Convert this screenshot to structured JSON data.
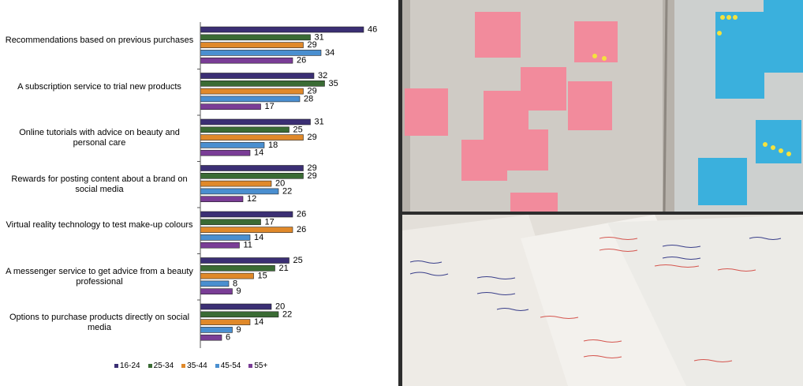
{
  "chart_data": {
    "type": "bar",
    "orientation": "horizontal",
    "title": "",
    "xlabel": "",
    "ylabel": "",
    "xlim": [
      0,
      50
    ],
    "grid": false,
    "legend_position": "bottom",
    "categories": [
      "Recommendations based on previous purchases",
      "A subscription service to trial new products",
      "Online tutorials with advice on beauty and personal care",
      "Rewards for posting content about a brand on social media",
      "Virtual reality technology to test make-up colours",
      "A messenger service to get advice from a beauty professional",
      "Options to purchase products directly on social media"
    ],
    "series": [
      {
        "name": "16-24",
        "color": "#3b2f74",
        "values": [
          46,
          32,
          31,
          29,
          26,
          25,
          20
        ]
      },
      {
        "name": "25-34",
        "color": "#3a6b34",
        "values": [
          31,
          35,
          25,
          29,
          17,
          21,
          22
        ]
      },
      {
        "name": "35-44",
        "color": "#e0892a",
        "values": [
          29,
          29,
          29,
          20,
          26,
          15,
          14
        ]
      },
      {
        "name": "45-54",
        "color": "#4a8fd0",
        "values": [
          34,
          28,
          18,
          22,
          14,
          8,
          9
        ]
      },
      {
        "name": "55+",
        "color": "#7a3d96",
        "values": [
          26,
          17,
          14,
          12,
          11,
          9,
          6
        ]
      }
    ]
  }
}
